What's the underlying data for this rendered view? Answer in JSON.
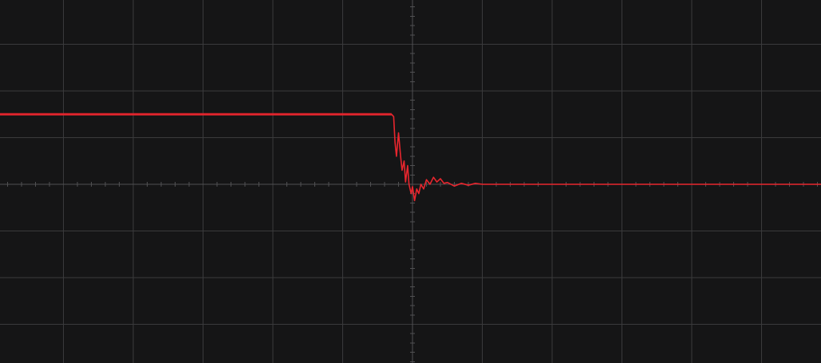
{
  "screen": {
    "background_color": "#151516",
    "grid_color": "#3a3a3c",
    "axis_color": "#505052",
    "trace_color": "#e8262e"
  },
  "chart_data": {
    "type": "line",
    "title": "",
    "xlabel": "",
    "ylabel": "",
    "xlim": [
      -6,
      6
    ],
    "ylim": [
      -4,
      4
    ],
    "grid": true,
    "x_divisions": 12,
    "y_divisions": 8,
    "series": [
      {
        "points": [
          [
            -6.0,
            1.5
          ],
          [
            -0.3,
            1.5
          ],
          [
            -0.27,
            1.45
          ],
          [
            -0.25,
            0.9
          ],
          [
            -0.23,
            0.6
          ],
          [
            -0.2,
            1.1
          ],
          [
            -0.17,
            0.6
          ],
          [
            -0.15,
            0.3
          ],
          [
            -0.12,
            0.5
          ],
          [
            -0.1,
            0.05
          ],
          [
            -0.07,
            0.4
          ],
          [
            -0.05,
            0.0
          ],
          [
            -0.02,
            -0.2
          ],
          [
            0.0,
            -0.05
          ],
          [
            0.03,
            -0.35
          ],
          [
            0.06,
            -0.1
          ],
          [
            0.09,
            -0.2
          ],
          [
            0.12,
            0.0
          ],
          [
            0.16,
            -0.1
          ],
          [
            0.2,
            0.1
          ],
          [
            0.25,
            0.0
          ],
          [
            0.3,
            0.15
          ],
          [
            0.35,
            0.05
          ],
          [
            0.4,
            0.12
          ],
          [
            0.45,
            0.02
          ],
          [
            0.5,
            0.04
          ],
          [
            0.6,
            -0.04
          ],
          [
            0.7,
            0.02
          ],
          [
            0.8,
            -0.02
          ],
          [
            0.9,
            0.02
          ],
          [
            1.0,
            0.0
          ],
          [
            6.0,
            0.0
          ]
        ]
      }
    ]
  }
}
